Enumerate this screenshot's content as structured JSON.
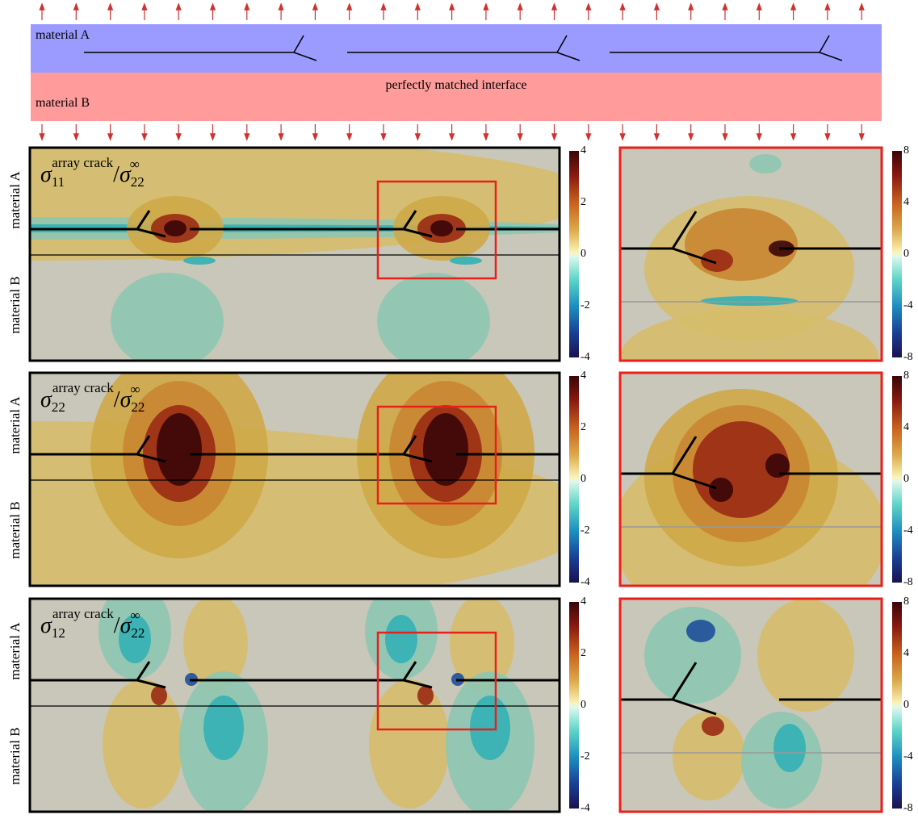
{
  "schematic": {
    "label_a": "material A",
    "label_b": "material B",
    "interface": "perfectly matched interface"
  },
  "panels": [
    {
      "title": {
        "symbol": "σ",
        "sub": "11",
        "sup": "array crack",
        "slash": "/",
        "den_symbol": "σ",
        "den_sub": "22",
        "den_sup": "∞"
      },
      "side_a": "material A",
      "side_b": "material B",
      "colorbar_ticks": [
        4,
        2,
        0,
        -2,
        -4
      ],
      "zoom_colorbar_ticks": [
        8,
        4,
        0,
        -4,
        -8
      ]
    },
    {
      "title": {
        "symbol": "σ",
        "sub": "22",
        "sup": "array crack",
        "slash": "/",
        "den_symbol": "σ",
        "den_sub": "22",
        "den_sup": "∞"
      },
      "side_a": "material A",
      "side_b": "material B",
      "colorbar_ticks": [
        4,
        2,
        0,
        -2,
        -4
      ],
      "zoom_colorbar_ticks": [
        8,
        4,
        0,
        -4,
        -8
      ]
    },
    {
      "title": {
        "symbol": "σ",
        "sub": "12",
        "sup": "array crack",
        "slash": "/",
        "den_symbol": "σ",
        "den_sub": "22",
        "den_sup": "∞"
      },
      "side_a": "material A",
      "side_b": "material B",
      "colorbar_ticks": [
        4,
        2,
        0,
        -2,
        -4
      ],
      "zoom_colorbar_ticks": [
        8,
        4,
        0,
        -4,
        -8
      ]
    }
  ]
}
